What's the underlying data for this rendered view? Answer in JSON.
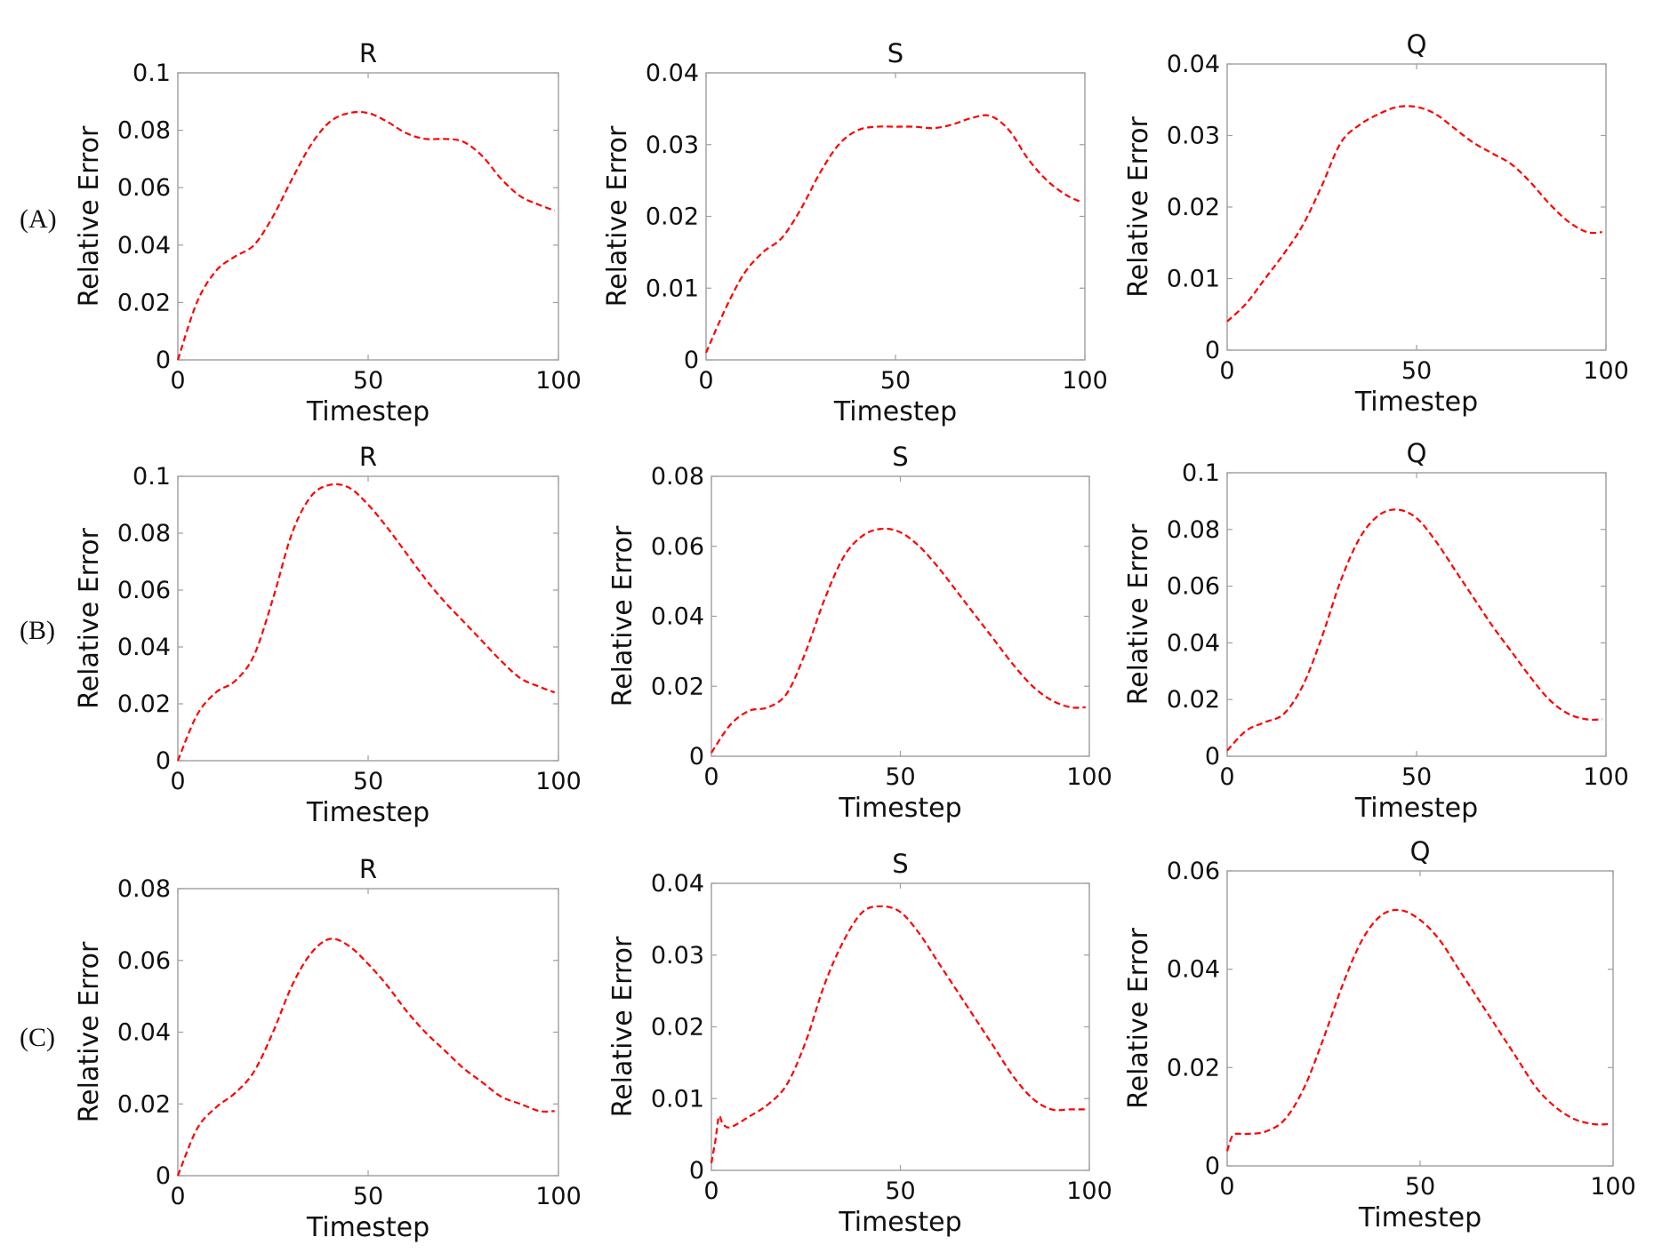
{
  "figure": {
    "row_labels": [
      "(A)",
      "(B)",
      "(C)"
    ],
    "line_color": "#ff0000"
  },
  "chart_data": [
    {
      "panel": "A-R",
      "type": "line",
      "title": "R",
      "xlabel": "Timestep",
      "ylabel": "Relative Error",
      "xlim": [
        0,
        100
      ],
      "ylim": [
        0,
        0.1
      ],
      "xticks": [
        "0",
        "50",
        "100"
      ],
      "yticks": [
        "0",
        "0.02",
        "0.04",
        "0.06",
        "0.08",
        "0.1"
      ],
      "x": [
        0,
        5,
        10,
        15,
        20,
        25,
        30,
        35,
        40,
        45,
        50,
        55,
        60,
        65,
        70,
        75,
        80,
        85,
        90,
        95,
        99
      ],
      "series": [
        {
          "values": [
            0.0,
            0.02,
            0.031,
            0.036,
            0.04,
            0.05,
            0.063,
            0.075,
            0.083,
            0.086,
            0.086,
            0.083,
            0.079,
            0.077,
            0.077,
            0.076,
            0.071,
            0.063,
            0.057,
            0.054,
            0.052
          ]
        }
      ]
    },
    {
      "panel": "A-S",
      "type": "line",
      "title": "S",
      "xlabel": "Timestep",
      "ylabel": "Relative Error",
      "xlim": [
        0,
        100
      ],
      "ylim": [
        0,
        0.04
      ],
      "xticks": [
        "0",
        "50",
        "100"
      ],
      "yticks": [
        "0",
        "0.01",
        "0.02",
        "0.03",
        "0.04"
      ],
      "x": [
        0,
        5,
        10,
        15,
        20,
        25,
        30,
        35,
        40,
        45,
        50,
        55,
        60,
        65,
        70,
        75,
        80,
        85,
        90,
        95,
        99
      ],
      "series": [
        {
          "values": [
            0.001,
            0.007,
            0.012,
            0.015,
            0.017,
            0.021,
            0.026,
            0.03,
            0.032,
            0.0325,
            0.0325,
            0.0325,
            0.0323,
            0.0328,
            0.0337,
            0.034,
            0.032,
            0.028,
            0.025,
            0.023,
            0.022
          ]
        }
      ]
    },
    {
      "panel": "A-Q",
      "type": "line",
      "title": "Q",
      "xlabel": "Timestep",
      "ylabel": "Relative Error",
      "xlim": [
        0,
        100
      ],
      "ylim": [
        0,
        0.04
      ],
      "xticks": [
        "0",
        "50",
        "100"
      ],
      "yticks": [
        "0",
        "0.01",
        "0.02",
        "0.03",
        "0.04"
      ],
      "x": [
        0,
        5,
        10,
        15,
        20,
        25,
        30,
        35,
        40,
        45,
        50,
        55,
        60,
        65,
        70,
        75,
        80,
        85,
        90,
        95,
        99
      ],
      "series": [
        {
          "values": [
            0.004,
            0.0065,
            0.01,
            0.0135,
            0.0175,
            0.023,
            0.029,
            0.0315,
            0.033,
            0.034,
            0.034,
            0.033,
            0.031,
            0.029,
            0.0275,
            0.026,
            0.0235,
            0.0205,
            0.018,
            0.0165,
            0.0165
          ]
        }
      ]
    },
    {
      "panel": "B-R",
      "type": "line",
      "title": "R",
      "xlabel": "Timestep",
      "ylabel": "Relative Error",
      "xlim": [
        0,
        100
      ],
      "ylim": [
        0,
        0.1
      ],
      "xticks": [
        "0",
        "50",
        "100"
      ],
      "yticks": [
        "0",
        "0.02",
        "0.04",
        "0.06",
        "0.08",
        "0.1"
      ],
      "x": [
        0,
        5,
        10,
        15,
        20,
        25,
        30,
        35,
        40,
        45,
        50,
        55,
        60,
        65,
        70,
        75,
        80,
        85,
        90,
        95,
        99
      ],
      "series": [
        {
          "values": [
            0.0,
            0.016,
            0.024,
            0.028,
            0.037,
            0.057,
            0.08,
            0.093,
            0.097,
            0.096,
            0.09,
            0.082,
            0.073,
            0.064,
            0.056,
            0.049,
            0.042,
            0.035,
            0.029,
            0.026,
            0.024
          ]
        }
      ]
    },
    {
      "panel": "B-S",
      "type": "line",
      "title": "S",
      "xlabel": "Timestep",
      "ylabel": "Relative Error",
      "xlim": [
        0,
        100
      ],
      "ylim": [
        0,
        0.08
      ],
      "xticks": [
        "0",
        "50",
        "100"
      ],
      "yticks": [
        "0",
        "0.02",
        "0.04",
        "0.06",
        "0.08"
      ],
      "x": [
        0,
        5,
        10,
        15,
        20,
        25,
        30,
        35,
        40,
        45,
        50,
        55,
        60,
        65,
        70,
        75,
        80,
        85,
        90,
        95,
        99
      ],
      "series": [
        {
          "values": [
            0.001,
            0.009,
            0.013,
            0.014,
            0.018,
            0.03,
            0.045,
            0.057,
            0.063,
            0.065,
            0.064,
            0.06,
            0.054,
            0.047,
            0.04,
            0.033,
            0.026,
            0.02,
            0.016,
            0.014,
            0.014
          ]
        }
      ]
    },
    {
      "panel": "B-Q",
      "type": "line",
      "title": "Q",
      "xlabel": "Timestep",
      "ylabel": "Relative Error",
      "xlim": [
        0,
        100
      ],
      "ylim": [
        0,
        0.1
      ],
      "xticks": [
        "0",
        "50",
        "100"
      ],
      "yticks": [
        "0",
        "0.02",
        "0.04",
        "0.06",
        "0.08",
        "0.1"
      ],
      "x": [
        0,
        5,
        10,
        15,
        20,
        25,
        30,
        35,
        40,
        45,
        50,
        55,
        60,
        65,
        70,
        75,
        80,
        85,
        90,
        95,
        99
      ],
      "series": [
        {
          "values": [
            0.002,
            0.009,
            0.012,
            0.015,
            0.025,
            0.042,
            0.062,
            0.077,
            0.085,
            0.087,
            0.084,
            0.076,
            0.066,
            0.056,
            0.046,
            0.037,
            0.028,
            0.02,
            0.015,
            0.013,
            0.013
          ]
        }
      ]
    },
    {
      "panel": "C-R",
      "type": "line",
      "title": "R",
      "xlabel": "Timestep",
      "ylabel": "Relative Error",
      "xlim": [
        0,
        100
      ],
      "ylim": [
        0,
        0.08
      ],
      "xticks": [
        "0",
        "50",
        "100"
      ],
      "yticks": [
        "0",
        "0.02",
        "0.04",
        "0.06",
        "0.08"
      ],
      "x": [
        0,
        5,
        10,
        15,
        20,
        25,
        30,
        35,
        40,
        45,
        50,
        55,
        60,
        65,
        70,
        75,
        80,
        85,
        90,
        95,
        99
      ],
      "series": [
        {
          "values": [
            0.0,
            0.013,
            0.019,
            0.023,
            0.029,
            0.04,
            0.053,
            0.062,
            0.066,
            0.064,
            0.059,
            0.053,
            0.046,
            0.04,
            0.035,
            0.03,
            0.026,
            0.022,
            0.02,
            0.018,
            0.018
          ]
        }
      ]
    },
    {
      "panel": "C-S",
      "type": "line",
      "title": "S",
      "xlabel": "Timestep",
      "ylabel": "Relative Error",
      "xlim": [
        0,
        100
      ],
      "ylim": [
        0,
        0.04
      ],
      "xticks": [
        "0",
        "50",
        "100"
      ],
      "yticks": [
        "0",
        "0.01",
        "0.02",
        "0.03",
        "0.04"
      ],
      "x": [
        0,
        1,
        2,
        3,
        5,
        10,
        15,
        20,
        25,
        30,
        35,
        40,
        45,
        50,
        55,
        60,
        65,
        70,
        75,
        80,
        85,
        90,
        95,
        99
      ],
      "series": [
        {
          "values": [
            0.001,
            0.004,
            0.0075,
            0.0065,
            0.006,
            0.0075,
            0.0092,
            0.012,
            0.018,
            0.026,
            0.032,
            0.036,
            0.0368,
            0.036,
            0.033,
            0.029,
            0.025,
            0.021,
            0.017,
            0.013,
            0.01,
            0.0085,
            0.0085,
            0.0085
          ]
        }
      ]
    },
    {
      "panel": "C-Q",
      "type": "line",
      "title": "Q",
      "xlabel": "Timestep",
      "ylabel": "Relative Error",
      "xlim": [
        0,
        100
      ],
      "ylim": [
        0,
        0.06
      ],
      "xticks": [
        "0",
        "50",
        "100"
      ],
      "yticks": [
        "0",
        "0.02",
        "0.04",
        "0.06"
      ],
      "x": [
        0,
        1,
        2,
        5,
        10,
        15,
        20,
        25,
        30,
        35,
        40,
        45,
        50,
        55,
        60,
        65,
        70,
        75,
        80,
        85,
        90,
        95,
        99
      ],
      "series": [
        {
          "values": [
            0.003,
            0.0055,
            0.0065,
            0.0065,
            0.007,
            0.0095,
            0.016,
            0.026,
            0.037,
            0.046,
            0.051,
            0.052,
            0.05,
            0.046,
            0.04,
            0.034,
            0.028,
            0.022,
            0.016,
            0.012,
            0.0095,
            0.0085,
            0.0085
          ]
        }
      ]
    }
  ]
}
